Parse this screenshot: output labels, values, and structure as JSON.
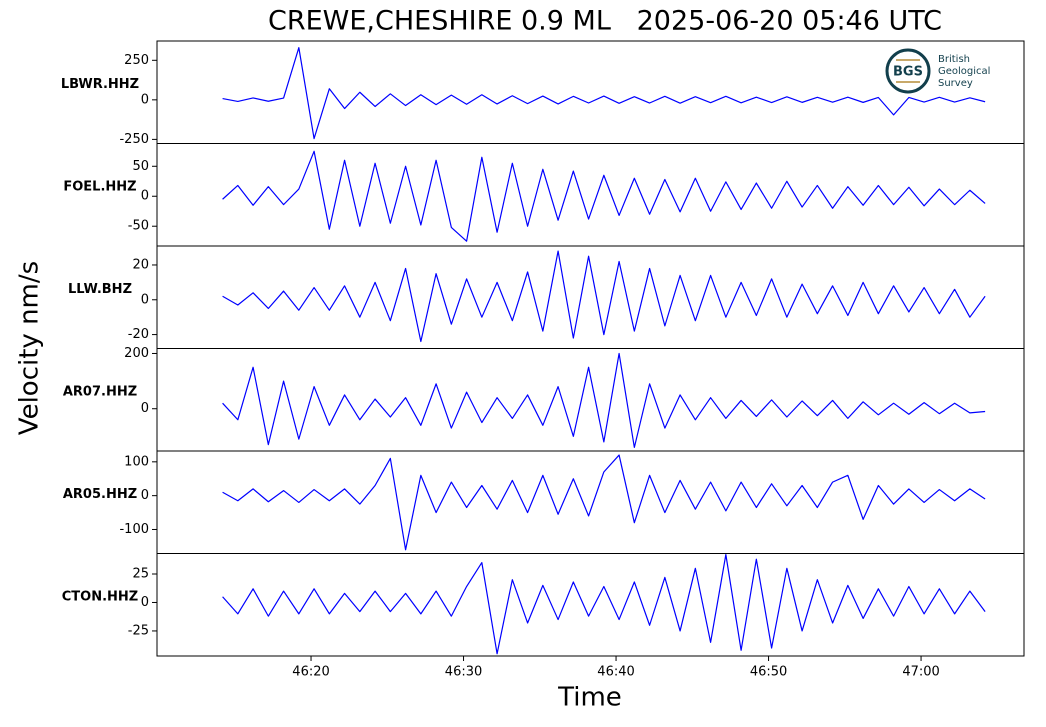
{
  "chart_data": {
    "type": "seismogram",
    "title": "CREWE,CHESHIRE 0.9 ML   2025-06-20 05:46 UTC",
    "xlabel": "Time",
    "ylabel": "Velocity nm/s",
    "color": "#0000ff",
    "logo": {
      "mark": "BGS",
      "lines": [
        "British",
        "Geological",
        "Survey"
      ]
    },
    "xlim": [
      9.9,
      66.75
    ],
    "xticks": [
      {
        "value": 20,
        "label": "46:20"
      },
      {
        "value": 30,
        "label": "46:30"
      },
      {
        "value": 40,
        "label": "46:40"
      },
      {
        "value": 50,
        "label": "46:50"
      },
      {
        "value": 60,
        "label": "47:00"
      }
    ],
    "x": [
      14.2,
      15.2,
      16.2,
      17.2,
      18.2,
      19.2,
      20.2,
      21.2,
      22.2,
      23.2,
      24.2,
      25.2,
      26.2,
      27.2,
      28.2,
      29.2,
      30.2,
      31.2,
      32.2,
      33.2,
      34.2,
      35.2,
      36.2,
      37.2,
      38.2,
      39.2,
      40.2,
      41.2,
      42.2,
      43.2,
      44.2,
      45.2,
      46.2,
      47.2,
      48.2,
      49.2,
      50.2,
      51.2,
      52.2,
      53.2,
      54.2,
      55.2,
      56.2,
      57.2,
      58.2,
      59.2,
      60.2,
      61.2,
      62.2,
      63.2,
      64.2
    ],
    "panels": [
      {
        "name": "LBWR.HHZ",
        "ylim": [
          -276,
          372
        ],
        "yticks": [
          250,
          0,
          -250
        ],
        "values": [
          8,
          -10,
          12,
          -9,
          11,
          330,
          -245,
          70,
          -55,
          48,
          -42,
          38,
          -36,
          32,
          -30,
          30,
          -28,
          32,
          -26,
          26,
          -24,
          24,
          -26,
          22,
          -20,
          24,
          -22,
          20,
          -20,
          22,
          -21,
          20,
          -18,
          22,
          -19,
          17,
          -17,
          19,
          -16,
          16,
          -15,
          17,
          -16,
          15,
          -95,
          15,
          -14,
          16,
          -14,
          13,
          -12
        ]
      },
      {
        "name": "FOEL.HHZ",
        "ylim": [
          -83,
          88
        ],
        "yticks": [
          50,
          0,
          -50
        ],
        "values": [
          -5,
          18,
          -15,
          16,
          -14,
          12,
          75,
          -55,
          60,
          -50,
          55,
          -45,
          50,
          -48,
          60,
          -52,
          -75,
          65,
          -60,
          55,
          -50,
          45,
          -40,
          42,
          -38,
          35,
          -32,
          30,
          -30,
          28,
          -26,
          30,
          -25,
          24,
          -22,
          22,
          -20,
          25,
          -18,
          18,
          -20,
          16,
          -15,
          18,
          -14,
          15,
          -16,
          12,
          -14,
          10,
          -12
        ]
      },
      {
        "name": "LLW.BHZ",
        "ylim": [
          -28,
          30.9
        ],
        "yticks": [
          20,
          0,
          -20
        ],
        "values": [
          2,
          -3,
          4,
          -5,
          5,
          -6,
          7,
          -6,
          8,
          -10,
          10,
          -12,
          18,
          -24,
          15,
          -14,
          12,
          -10,
          10,
          -12,
          16,
          -18,
          28,
          -22,
          25,
          -20,
          22,
          -18,
          18,
          -15,
          14,
          -12,
          14,
          -10,
          10,
          -9,
          12,
          -10,
          9,
          -8,
          8,
          -9,
          10,
          -8,
          8,
          -7,
          7,
          -8,
          6,
          -10,
          2
        ]
      },
      {
        "name": "AR07.HHZ",
        "ylim": [
          -153,
          218
        ],
        "yticks": [
          200,
          0
        ],
        "values": [
          20,
          -40,
          150,
          -130,
          100,
          -110,
          80,
          -60,
          50,
          -40,
          35,
          -30,
          40,
          -60,
          90,
          -70,
          60,
          -50,
          40,
          -35,
          50,
          -60,
          80,
          -100,
          150,
          -120,
          200,
          -140,
          90,
          -70,
          50,
          -40,
          40,
          -35,
          30,
          -28,
          32,
          -30,
          28,
          -25,
          30,
          -35,
          25,
          -22,
          20,
          -20,
          22,
          -18,
          20,
          -15,
          -10
        ]
      },
      {
        "name": "AR05.HHZ",
        "ylim": [
          -171,
          132
        ],
        "yticks": [
          100,
          0,
          -100
        ],
        "values": [
          10,
          -15,
          20,
          -18,
          15,
          -20,
          18,
          -15,
          20,
          -25,
          30,
          110,
          -160,
          60,
          -50,
          40,
          -35,
          30,
          -40,
          45,
          -50,
          60,
          -55,
          50,
          -60,
          70,
          120,
          -80,
          60,
          -50,
          45,
          -40,
          40,
          -45,
          40,
          -35,
          35,
          -30,
          30,
          -35,
          40,
          60,
          -70,
          30,
          -25,
          20,
          -20,
          18,
          -15,
          20,
          -10
        ]
      },
      {
        "name": "CTON.HHZ",
        "ylim": [
          -47,
          43
        ],
        "yticks": [
          25,
          0,
          -25
        ],
        "values": [
          5,
          -10,
          12,
          -12,
          10,
          -10,
          12,
          -10,
          8,
          -8,
          10,
          -8,
          8,
          -10,
          10,
          -12,
          14,
          35,
          -45,
          20,
          -18,
          15,
          -15,
          18,
          -12,
          14,
          -15,
          18,
          -20,
          22,
          -25,
          30,
          -35,
          42,
          -42,
          38,
          -40,
          30,
          -25,
          20,
          -18,
          15,
          -14,
          12,
          -12,
          14,
          -10,
          12,
          -10,
          10,
          -8
        ]
      }
    ]
  }
}
